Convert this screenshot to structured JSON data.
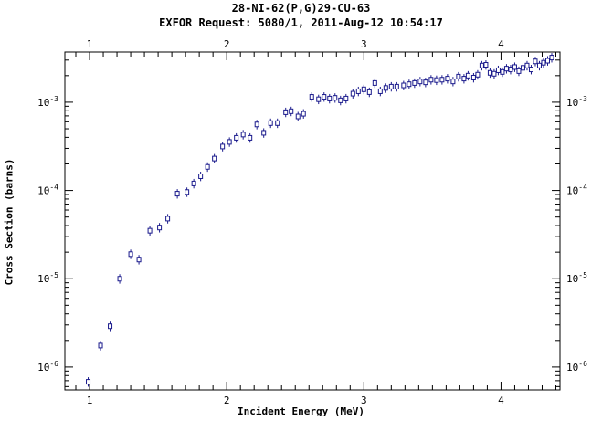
{
  "title": "28-NI-62(P,G)29-CU-63",
  "subtitle": "EXFOR Request: 5080/1, 2011-Aug-12 10:54:17",
  "chart_data": {
    "type": "scatter",
    "title": "28-NI-62(P,G)29-CU-63",
    "xlabel": "Incident Energy (MeV)",
    "ylabel": "Cross Section (barns)",
    "xlim": [
      0.82,
      4.43
    ],
    "yscale": "log",
    "ylim": [
      5.5e-07,
      0.0037
    ],
    "x_ticks": [
      1,
      2,
      3,
      4
    ],
    "x_tick_labels": [
      "1",
      "2",
      "3",
      "4"
    ],
    "y_ticks": [
      1e-06,
      1e-05,
      0.0001,
      0.001
    ],
    "y_tick_labels": [
      "10-6",
      "10-5",
      "10-4",
      "10-3"
    ],
    "grid": false,
    "marker_color": "#1a1a8c",
    "x": [
      0.99,
      1.08,
      1.15,
      1.22,
      1.3,
      1.36,
      1.44,
      1.51,
      1.57,
      1.64,
      1.71,
      1.76,
      1.81,
      1.86,
      1.91,
      1.97,
      2.02,
      2.07,
      2.12,
      2.17,
      2.22,
      2.27,
      2.32,
      2.37,
      2.43,
      2.47,
      2.52,
      2.56,
      2.62,
      2.67,
      2.71,
      2.75,
      2.79,
      2.83,
      2.87,
      2.92,
      2.96,
      3.0,
      3.04,
      3.08,
      3.12,
      3.16,
      3.2,
      3.24,
      3.29,
      3.33,
      3.37,
      3.41,
      3.45,
      3.49,
      3.53,
      3.57,
      3.61,
      3.65,
      3.69,
      3.73,
      3.76,
      3.8,
      3.83,
      3.86,
      3.89,
      3.92,
      3.95,
      3.98,
      4.01,
      4.04,
      4.07,
      4.1,
      4.13,
      4.16,
      4.19,
      4.22,
      4.25,
      4.28,
      4.31,
      4.34,
      4.37
    ],
    "y": [
      6.8e-07,
      1.75e-06,
      2.9e-06,
      1e-05,
      1.9e-05,
      1.65e-05,
      3.5e-05,
      3.8e-05,
      4.8e-05,
      9.2e-05,
      9.6e-05,
      0.00012,
      0.000145,
      0.000185,
      0.00023,
      0.000315,
      0.000355,
      0.000395,
      0.00043,
      0.000395,
      0.00056,
      0.00045,
      0.00058,
      0.00058,
      0.00077,
      0.00079,
      0.00069,
      0.00074,
      0.00115,
      0.00108,
      0.00115,
      0.0011,
      0.00112,
      0.00105,
      0.0011,
      0.00125,
      0.00133,
      0.0014,
      0.0013,
      0.00165,
      0.00133,
      0.00145,
      0.0015,
      0.0015,
      0.00155,
      0.0016,
      0.00165,
      0.00172,
      0.00168,
      0.0018,
      0.00178,
      0.0018,
      0.00185,
      0.00172,
      0.00195,
      0.00185,
      0.002,
      0.0019,
      0.00205,
      0.0026,
      0.00265,
      0.00215,
      0.0021,
      0.0023,
      0.0022,
      0.0024,
      0.00235,
      0.0025,
      0.00225,
      0.00245,
      0.0026,
      0.00235,
      0.0029,
      0.0026,
      0.0028,
      0.00295,
      0.0032
    ],
    "y_err_rel": 0.12
  }
}
